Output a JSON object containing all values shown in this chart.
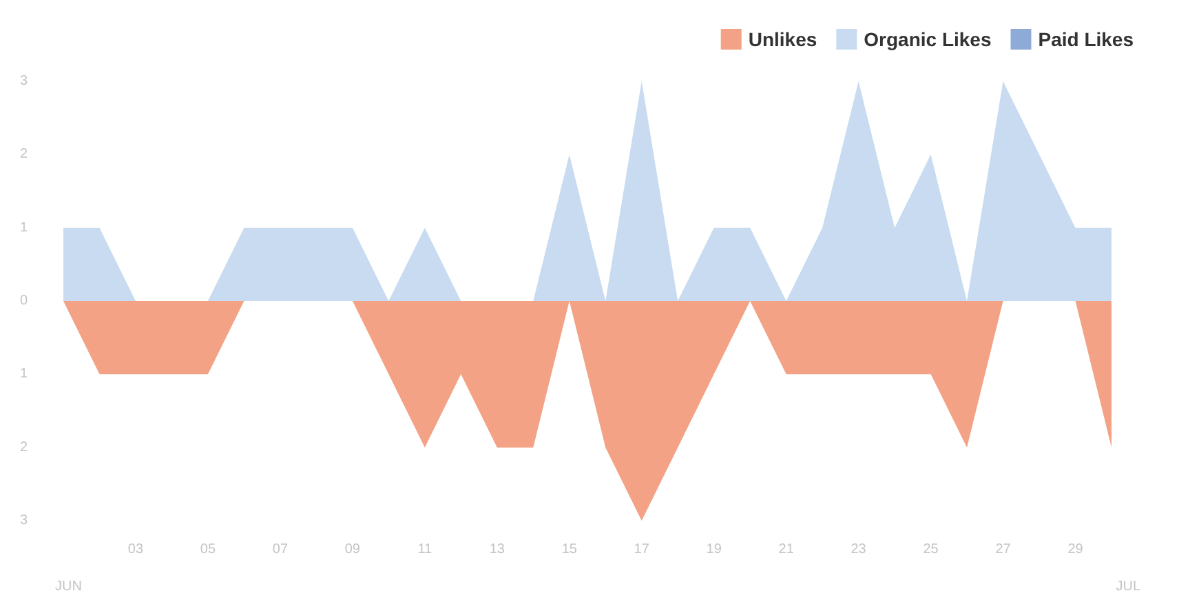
{
  "chart_data": {
    "type": "area",
    "categories": [
      null,
      null,
      "03",
      null,
      "05",
      null,
      "07",
      null,
      "09",
      null,
      "11",
      null,
      "13",
      null,
      "15",
      null,
      "17",
      null,
      "19",
      null,
      "21",
      null,
      "23",
      null,
      "25",
      null,
      "27",
      null,
      "29",
      null
    ],
    "series": [
      {
        "name": "Unlikes",
        "color": "#f4a285",
        "values": [
          0,
          -1,
          -1,
          -1,
          -1,
          0,
          0,
          0,
          0,
          -1,
          -2,
          -1,
          -2,
          -2,
          0,
          -2,
          -3,
          -2,
          -1,
          0,
          -1,
          -1,
          -1,
          -1,
          -1,
          -2,
          0,
          0,
          0,
          -2
        ]
      },
      {
        "name": "Organic Likes",
        "color": "#c9dbf0",
        "values": [
          1,
          1,
          0,
          0,
          0,
          1,
          1,
          1,
          1,
          0,
          1,
          0,
          0,
          0,
          2,
          0,
          3,
          0,
          1,
          1,
          0,
          1,
          3,
          1,
          2,
          0,
          3,
          2,
          1,
          1
        ]
      },
      {
        "name": "Paid Likes",
        "color": "#8eabd8",
        "values": [
          null,
          null,
          null,
          null,
          null,
          null,
          null,
          null,
          null,
          null,
          null,
          null,
          null,
          null,
          null,
          null,
          null,
          null,
          null,
          null,
          null,
          null,
          null,
          null,
          null,
          null,
          null,
          null,
          null,
          null
        ]
      }
    ],
    "ylim": [
      -3,
      3
    ],
    "yticks": [
      {
        "value": -3,
        "label": "3"
      },
      {
        "value": -2,
        "label": "2"
      },
      {
        "value": -1,
        "label": "1"
      },
      0,
      1,
      2,
      3
    ],
    "annotations": [
      "JUN",
      "JUL"
    ],
    "legend": "top right",
    "grid": false,
    "marker": "none"
  }
}
